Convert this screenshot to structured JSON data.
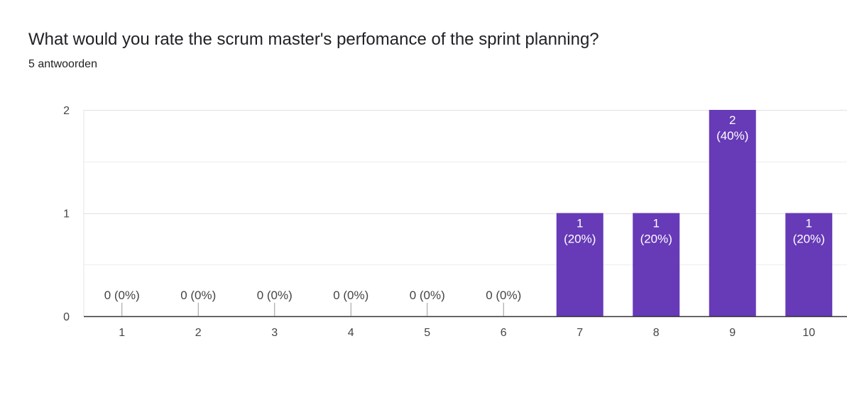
{
  "header": {
    "title": "What would you rate the scrum master's perfomance of the sprint planning?",
    "subtitle": "5 antwoorden"
  },
  "colors": {
    "bar": "#673ab7",
    "grid": "#e6e6e6",
    "axis": "#333333",
    "tick_text": "#444444"
  },
  "chart_data": {
    "type": "bar",
    "title": "",
    "xlabel": "",
    "ylabel": "",
    "categories": [
      "1",
      "2",
      "3",
      "4",
      "5",
      "6",
      "7",
      "8",
      "9",
      "10"
    ],
    "values": [
      0,
      0,
      0,
      0,
      0,
      0,
      1,
      1,
      2,
      1
    ],
    "labels": [
      [
        "0 (0%)"
      ],
      [
        "0 (0%)"
      ],
      [
        "0 (0%)"
      ],
      [
        "0 (0%)"
      ],
      [
        "0 (0%)"
      ],
      [
        "0 (0%)"
      ],
      [
        "1",
        "(20%)"
      ],
      [
        "1",
        "(20%)"
      ],
      [
        "2",
        "(40%)"
      ],
      [
        "1",
        "(20%)"
      ]
    ],
    "yticks": [
      "0",
      "1",
      "2"
    ],
    "ylim": [
      0,
      2
    ],
    "grid": true,
    "legend": "none"
  }
}
